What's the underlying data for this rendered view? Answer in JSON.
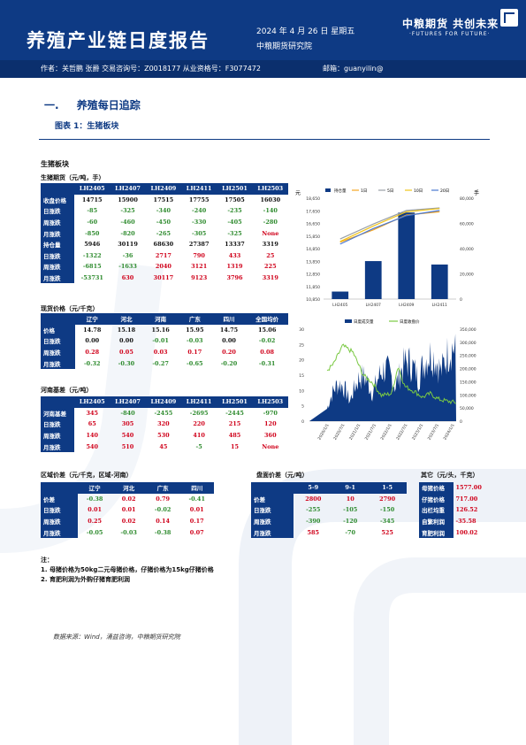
{
  "header": {
    "title": "养殖产业链日度报告",
    "date": "2024 年 4 月 26 日 星期五",
    "institute": "中粮期货研究院",
    "brand_cn": "中粮期货 共创未来",
    "brand_en": "·FUTURES FOR FUTURE·",
    "authors": "作者：关哲鹏  张爵  交易咨询号：Z0018177 从业资格号：F3077472",
    "email": "邮箱：guanyilin@"
  },
  "section": {
    "number": "一.",
    "title": "养殖每日追踪"
  },
  "figure_title": "图表 1：生猪板块",
  "box_title": "生猪板块",
  "futures": {
    "caption": "生猪期货（元/吨，手）",
    "headers": [
      "",
      "LH2405",
      "LH2407",
      "LH2409",
      "LH2411",
      "LH2501",
      "LH2503"
    ],
    "rows": [
      {
        "label": "收盘价格",
        "cells": [
          [
            "14715",
            "blk"
          ],
          [
            "15900",
            "blk"
          ],
          [
            "17515",
            "blk"
          ],
          [
            "17755",
            "blk"
          ],
          [
            "17505",
            "blk"
          ],
          [
            "16030",
            "blk"
          ]
        ]
      },
      {
        "label": "日涨跌",
        "cells": [
          [
            "-85",
            "neg"
          ],
          [
            "-325",
            "neg"
          ],
          [
            "-340",
            "neg"
          ],
          [
            "-240",
            "neg"
          ],
          [
            "-235",
            "neg"
          ],
          [
            "-140",
            "neg"
          ]
        ]
      },
      {
        "label": "周涨跌",
        "cells": [
          [
            "-60",
            "neg"
          ],
          [
            "-460",
            "neg"
          ],
          [
            "-450",
            "neg"
          ],
          [
            "-330",
            "neg"
          ],
          [
            "-405",
            "neg"
          ],
          [
            "-280",
            "neg"
          ]
        ]
      },
      {
        "label": "月涨跌",
        "cells": [
          [
            "-850",
            "neg"
          ],
          [
            "-820",
            "neg"
          ],
          [
            "-265",
            "neg"
          ],
          [
            "-305",
            "neg"
          ],
          [
            "-325",
            "neg"
          ],
          [
            "None",
            "pos"
          ]
        ]
      },
      {
        "label": "持仓量",
        "cells": [
          [
            "5946",
            "blk"
          ],
          [
            "30119",
            "blk"
          ],
          [
            "68630",
            "blk"
          ],
          [
            "27387",
            "blk"
          ],
          [
            "13337",
            "blk"
          ],
          [
            "3319",
            "blk"
          ]
        ]
      },
      {
        "label": "日涨跌",
        "cells": [
          [
            "-1322",
            "neg"
          ],
          [
            "-36",
            "neg"
          ],
          [
            "2717",
            "pos"
          ],
          [
            "790",
            "pos"
          ],
          [
            "433",
            "pos"
          ],
          [
            "25",
            "pos"
          ]
        ]
      },
      {
        "label": "周涨跌",
        "cells": [
          [
            "-6815",
            "neg"
          ],
          [
            "-1633",
            "neg"
          ],
          [
            "2040",
            "pos"
          ],
          [
            "3121",
            "pos"
          ],
          [
            "1319",
            "pos"
          ],
          [
            "225",
            "pos"
          ]
        ]
      },
      {
        "label": "月涨跌",
        "cells": [
          [
            "-53731",
            "neg"
          ],
          [
            "630",
            "pos"
          ],
          [
            "30117",
            "pos"
          ],
          [
            "9123",
            "pos"
          ],
          [
            "3796",
            "pos"
          ],
          [
            "3319",
            "pos"
          ]
        ]
      }
    ]
  },
  "spot": {
    "caption": "现货价格（元/千克）",
    "headers": [
      "",
      "辽宁",
      "河北",
      "河南",
      "广东",
      "四川",
      "全国均价"
    ],
    "rows": [
      {
        "label": "价格",
        "cells": [
          [
            "14.78",
            "blk"
          ],
          [
            "15.18",
            "blk"
          ],
          [
            "15.16",
            "blk"
          ],
          [
            "15.95",
            "blk"
          ],
          [
            "14.75",
            "blk"
          ],
          [
            "15.06",
            "blk"
          ]
        ]
      },
      {
        "label": "日涨跌",
        "cells": [
          [
            "0.00",
            "blk"
          ],
          [
            "0.00",
            "blk"
          ],
          [
            "-0.01",
            "neg"
          ],
          [
            "-0.03",
            "neg"
          ],
          [
            "0.00",
            "blk"
          ],
          [
            "-0.02",
            "neg"
          ]
        ]
      },
      {
        "label": "周涨跌",
        "cells": [
          [
            "0.28",
            "pos"
          ],
          [
            "0.05",
            "pos"
          ],
          [
            "0.03",
            "pos"
          ],
          [
            "0.17",
            "pos"
          ],
          [
            "0.20",
            "pos"
          ],
          [
            "0.08",
            "pos"
          ]
        ]
      },
      {
        "label": "月涨跌",
        "cells": [
          [
            "-0.32",
            "neg"
          ],
          [
            "-0.30",
            "neg"
          ],
          [
            "-0.27",
            "neg"
          ],
          [
            "-0.65",
            "neg"
          ],
          [
            "-0.20",
            "neg"
          ],
          [
            "-0.31",
            "neg"
          ]
        ]
      }
    ]
  },
  "basis": {
    "caption": "河南基差（元/吨）",
    "headers": [
      "",
      "LH2405",
      "LH2407",
      "LH2409",
      "LH2411",
      "LH2501",
      "LH2503"
    ],
    "rows": [
      {
        "label": "河南基差",
        "cells": [
          [
            "345",
            "pos"
          ],
          [
            "-840",
            "neg"
          ],
          [
            "-2455",
            "neg"
          ],
          [
            "-2695",
            "neg"
          ],
          [
            "-2445",
            "neg"
          ],
          [
            "-970",
            "neg"
          ]
        ]
      },
      {
        "label": "日涨跌",
        "cells": [
          [
            "65",
            "pos"
          ],
          [
            "305",
            "pos"
          ],
          [
            "320",
            "pos"
          ],
          [
            "220",
            "pos"
          ],
          [
            "215",
            "pos"
          ],
          [
            "120",
            "pos"
          ]
        ]
      },
      {
        "label": "周涨跌",
        "cells": [
          [
            "140",
            "pos"
          ],
          [
            "540",
            "pos"
          ],
          [
            "530",
            "pos"
          ],
          [
            "410",
            "pos"
          ],
          [
            "485",
            "pos"
          ],
          [
            "360",
            "pos"
          ]
        ]
      },
      {
        "label": "月涨跌",
        "cells": [
          [
            "540",
            "pos"
          ],
          [
            "510",
            "pos"
          ],
          [
            "45",
            "pos"
          ],
          [
            "-5",
            "neg"
          ],
          [
            "15",
            "pos"
          ],
          [
            "None",
            "pos"
          ]
        ]
      }
    ]
  },
  "regional": {
    "caption": "区域价差（元/千克，区域-河南）",
    "headers": [
      "",
      "辽宁",
      "河北",
      "广东",
      "四川"
    ],
    "rows": [
      {
        "label": "价差",
        "cells": [
          [
            "-0.38",
            "neg"
          ],
          [
            "0.02",
            "pos"
          ],
          [
            "0.79",
            "pos"
          ],
          [
            "-0.41",
            "neg"
          ]
        ]
      },
      {
        "label": "日涨跌",
        "cells": [
          [
            "0.01",
            "pos"
          ],
          [
            "0.01",
            "pos"
          ],
          [
            "-0.02",
            "neg"
          ],
          [
            "0.01",
            "pos"
          ]
        ]
      },
      {
        "label": "周涨跌",
        "cells": [
          [
            "0.25",
            "pos"
          ],
          [
            "0.02",
            "pos"
          ],
          [
            "0.14",
            "pos"
          ],
          [
            "0.17",
            "pos"
          ]
        ]
      },
      {
        "label": "月涨跌",
        "cells": [
          [
            "-0.05",
            "neg"
          ],
          [
            "-0.03",
            "neg"
          ],
          [
            "-0.38",
            "neg"
          ],
          [
            "0.07",
            "pos"
          ]
        ]
      }
    ]
  },
  "spread": {
    "caption": "盘面价差（元/吨）",
    "headers": [
      "",
      "5-9",
      "9-1",
      "1-5"
    ],
    "rows": [
      {
        "label": "价差",
        "cells": [
          [
            "2800",
            "pos"
          ],
          [
            "10",
            "pos"
          ],
          [
            "2790",
            "pos"
          ]
        ]
      },
      {
        "label": "日涨跌",
        "cells": [
          [
            "-255",
            "neg"
          ],
          [
            "-105",
            "neg"
          ],
          [
            "-150",
            "neg"
          ]
        ]
      },
      {
        "label": "周涨跌",
        "cells": [
          [
            "-390",
            "neg"
          ],
          [
            "-120",
            "neg"
          ],
          [
            "-345",
            "neg"
          ]
        ]
      },
      {
        "label": "月涨跌",
        "cells": [
          [
            "585",
            "pos"
          ],
          [
            "-70",
            "neg"
          ],
          [
            "525",
            "pos"
          ]
        ]
      }
    ]
  },
  "others": {
    "caption": "其它（元/头，千克）",
    "rows": [
      {
        "label": "母猪价格",
        "value": "1577.00"
      },
      {
        "label": "仔猪价格",
        "value": "717.00"
      },
      {
        "label": "出栏均重",
        "value": "126.52"
      },
      {
        "label": "自繁利润",
        "value": "-35.58"
      },
      {
        "label": "育肥利润",
        "value": "100.02"
      }
    ]
  },
  "notes": {
    "title": "注：",
    "items": [
      "1. 母猪价格为50kg二元母猪价格，仔猪价格为15kg仔猪价格",
      "2. 育肥利润为外购仔猪育肥利润"
    ]
  },
  "source": "数据来源：Wind，涌益咨询，中粮期货研究院",
  "chart_data": [
    {
      "type": "bar",
      "title": "",
      "categories": [
        "LH2405",
        "LH2407",
        "LH2409",
        "LH2411"
      ],
      "series": [
        {
          "name": "持仓量",
          "kind": "bar",
          "axis": "right",
          "values": [
            5946,
            30119,
            68630,
            27387
          ]
        },
        {
          "name": "1日",
          "kind": "line",
          "axis": "left",
          "values": [
            15250,
            16200,
            17350,
            17600
          ]
        },
        {
          "name": "5日",
          "kind": "line",
          "axis": "left",
          "values": [
            15500,
            16650,
            17700,
            17900
          ]
        },
        {
          "name": "10日",
          "kind": "line",
          "axis": "left",
          "values": [
            15300,
            16500,
            17600,
            17850
          ]
        },
        {
          "name": "20日",
          "kind": "line",
          "axis": "left",
          "values": [
            15100,
            16300,
            17300,
            17700
          ]
        }
      ],
      "left_axis": {
        "label": "元",
        "ylim": [
          10850,
          18650
        ],
        "ticks": [
          "18,650",
          "17,650",
          "16,650",
          "15,850",
          "14,850",
          "13,850",
          "12,850",
          "11,850",
          "10,850"
        ]
      },
      "right_axis": {
        "label": "手",
        "ylim": [
          0,
          80000
        ],
        "ticks": [
          "80,000",
          "60,000",
          "40,000",
          "20,000",
          "0"
        ]
      },
      "legend": "top"
    },
    {
      "type": "area",
      "title": "",
      "x_ticks": [
        "2020/1/1",
        "2020/7/1",
        "2021/1/1",
        "2021/7/1",
        "2022/1/1",
        "2022/7/1",
        "2023/1/1",
        "2023/7/1",
        "2024/1/1"
      ],
      "series": [
        {
          "name": "日度成交量",
          "kind": "area",
          "axis": "right"
        },
        {
          "name": "日度收盘价",
          "kind": "line",
          "axis": "left"
        }
      ],
      "left_axis": {
        "ylim": [
          0,
          30
        ],
        "ticks": [
          "30",
          "25",
          "20",
          "15",
          "10",
          "5",
          "0"
        ]
      },
      "right_axis": {
        "ylim": [
          0,
          350000
        ],
        "ticks": [
          "350,000",
          "300,000",
          "250,000",
          "200,000",
          "150,000",
          "100,000",
          "50,000",
          "0"
        ]
      },
      "legend": "top"
    }
  ],
  "colors": {
    "primary": "#0e3a84",
    "up": "#d0021b",
    "down": "#2e8b2e",
    "bar": "#0e3a84",
    "line1": "#f5a623",
    "line2": "#9aa0a6",
    "line3": "#f0c419",
    "line4": "#4a78d0",
    "area_line": "#7ac943"
  }
}
